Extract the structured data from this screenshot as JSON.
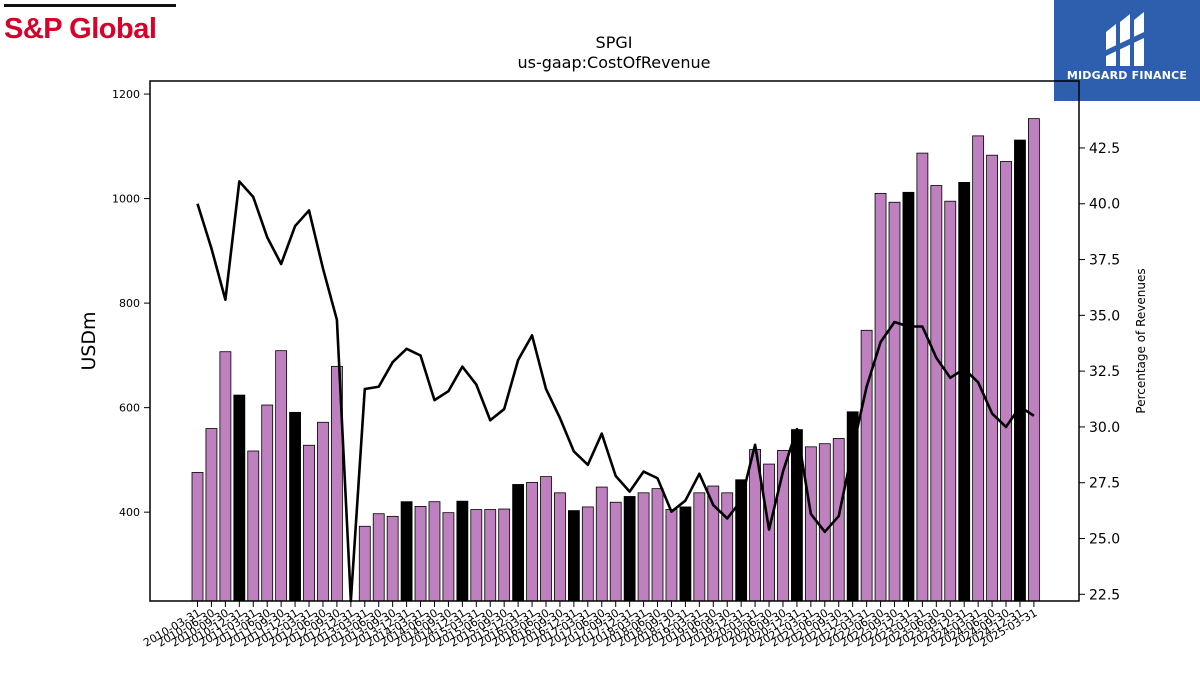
{
  "branding": {
    "left_logo_text": "S&P Global",
    "right_logo_text": "MIDGARD FINANCE",
    "accent_red": "#d6002a",
    "accent_blue": "#2d5fae"
  },
  "chart_data": {
    "type": "bar",
    "title": "SPGI",
    "subtitle": "us-gaap:CostOfRevenue",
    "ylabel": "USDm",
    "y2label": "Percentage of Revenues",
    "ylim": [
      230,
      1225
    ],
    "y2lim": [
      22.2,
      45.5
    ],
    "yticks": [
      400,
      600,
      800,
      1000,
      1200
    ],
    "y2ticks": [
      22.5,
      25.0,
      27.5,
      30.0,
      32.5,
      35.0,
      37.5,
      40.0,
      42.5
    ],
    "bar_colors": {
      "quarter": "#bf80bf",
      "fiscal_year": "#000000"
    },
    "categories": [
      "2010-03-31",
      "2010-06-30",
      "2010-09-30",
      "2010-12-31",
      "2011-03-31",
      "2011-06-30",
      "2011-09-30",
      "2011-12-31",
      "2012-03-31",
      "2012-06-30",
      "2012-09-30",
      "2012-12-31",
      "2013-03-31",
      "2013-06-30",
      "2013-09-30",
      "2013-12-31",
      "2014-03-31",
      "2014-06-30",
      "2014-09-30",
      "2014-12-31",
      "2015-03-31",
      "2015-06-30",
      "2015-09-30",
      "2015-12-31",
      "2016-03-31",
      "2016-06-30",
      "2016-09-30",
      "2016-12-31",
      "2017-03-31",
      "2017-06-30",
      "2017-09-30",
      "2017-12-31",
      "2018-03-31",
      "2018-06-30",
      "2018-09-30",
      "2018-12-31",
      "2019-03-31",
      "2019-06-30",
      "2019-09-30",
      "2019-12-31",
      "2020-03-31",
      "2020-06-30",
      "2020-09-30",
      "2020-12-31",
      "2021-03-31",
      "2021-06-30",
      "2021-09-30",
      "2021-12-31",
      "2022-03-31",
      "2022-06-30",
      "2022-09-30",
      "2022-12-31",
      "2023-03-31",
      "2023-06-30",
      "2023-09-30",
      "2023-12-31",
      "2024-03-31",
      "2024-06-30",
      "2024-09-30",
      "2024-12-31",
      "2025-03-31"
    ],
    "xtick_labels": [
      "2010-03-31",
      "2010-06-30",
      "2010-09-30",
      "2010-12-31",
      "2011-03-31",
      "2011-06-30",
      "2011-09-30",
      "2011-12-31",
      "2012-03-31",
      "2012-06-30",
      "2012-09-30",
      "2012-12-31",
      "2013-03-31",
      "2013-06-30",
      "2013-09-30",
      "2013-12-31",
      "2014-03-31",
      "2014-06-30",
      "2014-09-30",
      "2014-12-31",
      "2015-03-31",
      "2015-06-30",
      "2015-09-30",
      "2015-12-31",
      "2016-03-31",
      "2016-06-30",
      "2016-09-30",
      "2016-12-31",
      "2017-03-31",
      "2017-06-30",
      "2017-09-30",
      "2017-12-31",
      "2018-03-31",
      "2018-06-30",
      "2018-09-30",
      "2018-12-31",
      "2019-03-31",
      "2019-06-30",
      "2019-09-30",
      "2019-12-31",
      "2020-03-31",
      "2020-06-30",
      "2020-09-30",
      "2020-12-31",
      "2021-03-31",
      "2021-06-30",
      "2021-09-30",
      "2021-12-31",
      "2022-03-31",
      "2022-06-30",
      "2022-09-30",
      "2022-12-31",
      "2023-03-31",
      "2023-06-30",
      "2023-09-30",
      "2023-12-31",
      "2024-03-31",
      "2024-06-30",
      "2024-09-30",
      "2024-12-31",
      "2025-03-31"
    ],
    "values": [
      476,
      560,
      707,
      624,
      517,
      605,
      709,
      591,
      528,
      572,
      679,
      null,
      373,
      397,
      392,
      420,
      411,
      420,
      399,
      421,
      405,
      405,
      406,
      453,
      457,
      468,
      437,
      403,
      410,
      448,
      419,
      430,
      437,
      445,
      405,
      410,
      437,
      450,
      437,
      462,
      520,
      492,
      518,
      558,
      525,
      531,
      541,
      592,
      748,
      1010,
      993,
      1012,
      1087,
      1025,
      995,
      1031,
      1120,
      1083,
      1071,
      1112,
      1153
    ],
    "fiscal_year_flags": [
      false,
      false,
      false,
      true,
      false,
      false,
      false,
      true,
      false,
      false,
      false,
      true,
      false,
      false,
      false,
      true,
      false,
      false,
      false,
      true,
      false,
      false,
      false,
      true,
      false,
      false,
      false,
      true,
      false,
      false,
      false,
      true,
      false,
      false,
      false,
      true,
      false,
      false,
      false,
      true,
      false,
      false,
      false,
      true,
      false,
      false,
      false,
      true,
      false,
      false,
      false,
      true,
      false,
      false,
      false,
      true,
      false,
      false,
      false,
      true,
      false
    ],
    "series": [
      {
        "axis": "right",
        "type": "line",
        "values": [
          40.0,
          38.0,
          35.7,
          41.0,
          40.3,
          38.5,
          37.3,
          39.0,
          39.7,
          37.1,
          34.8,
          null,
          31.7,
          31.8,
          32.9,
          33.5,
          33.2,
          31.2,
          31.6,
          32.7,
          31.9,
          30.3,
          30.8,
          33.0,
          34.1,
          31.7,
          30.4,
          28.9,
          28.3,
          29.7,
          27.8,
          27.1,
          28.0,
          27.7,
          26.2,
          26.7,
          27.9,
          26.5,
          25.9,
          26.7,
          29.2,
          25.4,
          28.0,
          29.9,
          26.1,
          25.3,
          26.0,
          29.0,
          31.8,
          33.8,
          34.7,
          34.5,
          34.5,
          33.1,
          32.2,
          32.6,
          32.0,
          30.6,
          30.0,
          30.9,
          30.5
        ]
      }
    ]
  }
}
